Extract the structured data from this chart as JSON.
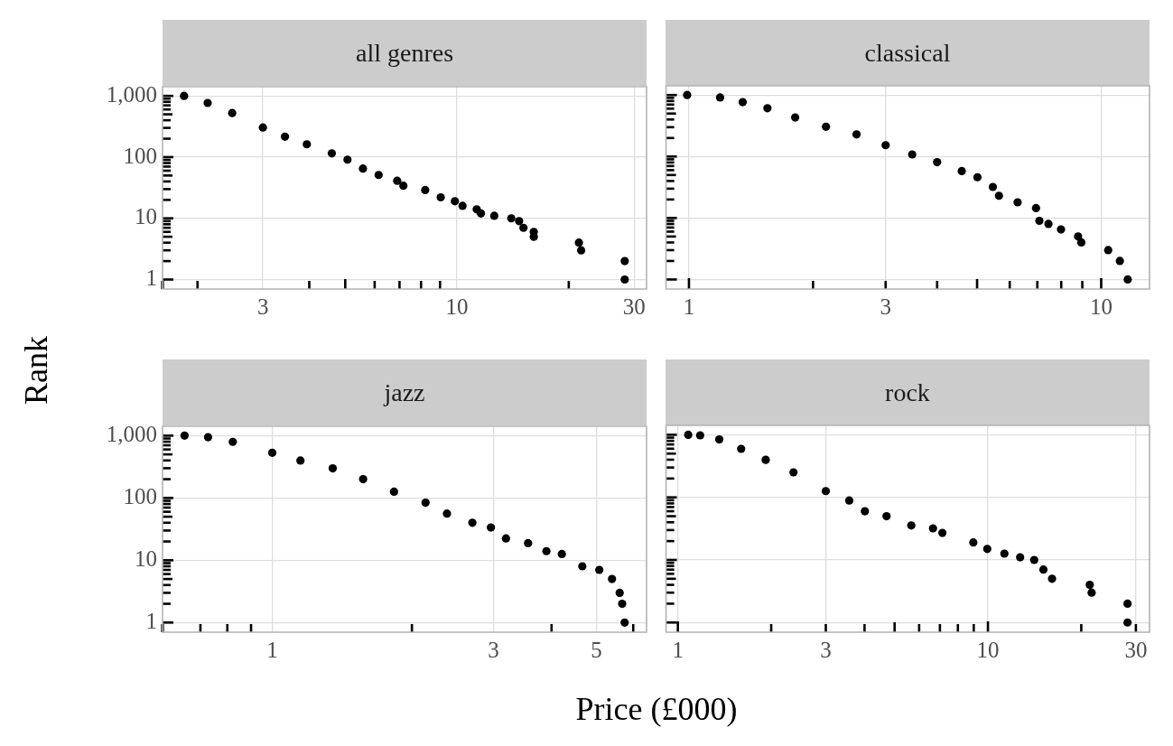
{
  "chart_data": [
    {
      "type": "scatter",
      "title": "all genres",
      "ylabel": "Rank",
      "color": "#000000",
      "marker": "circle",
      "log": "xy",
      "grid": true,
      "x": [
        1.84,
        2.13,
        2.48,
        3.0,
        3.44,
        3.94,
        4.6,
        5.07,
        5.58,
        6.15,
        6.9,
        7.17,
        8.21,
        9.04,
        9.87,
        10.35,
        11.3,
        11.6,
        12.6,
        14.0,
        14.7,
        15.1,
        16.1,
        16.1,
        21.3,
        21.6,
        28.3,
        28.3
      ],
      "values": [
        1000,
        767,
        525,
        305,
        216,
        162,
        115,
        91,
        65,
        51,
        41,
        34,
        29,
        22,
        19,
        16,
        14,
        12,
        11,
        10,
        9,
        7,
        6,
        5,
        4,
        3,
        2,
        1
      ],
      "xlim": [
        1.61,
        32.4
      ],
      "ylim": [
        0.708,
        1413
      ],
      "xticks": [
        {
          "value": 2,
          "label": null
        },
        3,
        {
          "value": 4,
          "label": null
        },
        {
          "value": 5,
          "label": null
        },
        {
          "value": 6,
          "label": null
        },
        {
          "value": 7,
          "label": null
        },
        {
          "value": 8,
          "label": null
        },
        {
          "value": 9,
          "label": null
        },
        10,
        {
          "value": 20,
          "label": null
        },
        30
      ],
      "yticks": [
        1,
        {
          "value": 2,
          "label": null
        },
        {
          "value": 3,
          "label": null
        },
        {
          "value": 4,
          "label": null
        },
        {
          "value": 5,
          "label": null
        },
        {
          "value": 6,
          "label": null
        },
        {
          "value": 7,
          "label": null
        },
        {
          "value": 8,
          "label": null
        },
        {
          "value": 9,
          "label": null
        },
        10,
        {
          "value": 20,
          "label": null
        },
        {
          "value": 30,
          "label": null
        },
        {
          "value": 40,
          "label": null
        },
        {
          "value": 50,
          "label": null
        },
        {
          "value": 60,
          "label": null
        },
        {
          "value": 70,
          "label": null
        },
        {
          "value": 80,
          "label": null
        },
        {
          "value": 90,
          "label": null
        },
        100,
        {
          "value": 200,
          "label": null
        },
        {
          "value": 300,
          "label": null
        },
        {
          "value": 400,
          "label": null
        },
        {
          "value": 500,
          "label": null
        },
        {
          "value": 600,
          "label": null
        },
        {
          "value": 700,
          "label": null
        },
        {
          "value": 800,
          "label": null
        },
        {
          "value": 900,
          "label": null
        },
        {
          "value": 1000,
          "label": "1,000"
        }
      ]
    },
    {
      "type": "scatter",
      "title": "classical",
      "color": "#000000",
      "marker": "circle",
      "log": "xy",
      "grid": true,
      "tick_labels": "x",
      "x": [
        0.99,
        1.19,
        1.35,
        1.55,
        1.81,
        2.15,
        2.55,
        3.0,
        3.48,
        4.0,
        4.59,
        5.01,
        5.46,
        5.65,
        6.27,
        6.95,
        7.08,
        7.45,
        7.99,
        8.79,
        8.95,
        10.4,
        11.1,
        11.6
      ],
      "values": [
        1000,
        912,
        767,
        610,
        431,
        305,
        229,
        153,
        108,
        81,
        58,
        46,
        32,
        23,
        18,
        14.5,
        9,
        8,
        6.5,
        5,
        4,
        3,
        2,
        1
      ],
      "xlim": [
        0.88,
        13.1
      ],
      "ylim": [
        0.708,
        1413
      ],
      "xticks": [
        1,
        {
          "value": 2,
          "label": null
        },
        3,
        {
          "value": 4,
          "label": null
        },
        {
          "value": 5,
          "label": null
        },
        {
          "value": 6,
          "label": null
        },
        {
          "value": 7,
          "label": null
        },
        {
          "value": 8,
          "label": null
        },
        {
          "value": 9,
          "label": null
        },
        10
      ],
      "yticks": [
        1,
        {
          "value": 2,
          "label": null
        },
        {
          "value": 3,
          "label": null
        },
        {
          "value": 4,
          "label": null
        },
        {
          "value": 5,
          "label": null
        },
        {
          "value": 6,
          "label": null
        },
        {
          "value": 7,
          "label": null
        },
        {
          "value": 8,
          "label": null
        },
        {
          "value": 9,
          "label": null
        },
        10,
        {
          "value": 20,
          "label": null
        },
        {
          "value": 30,
          "label": null
        },
        {
          "value": 40,
          "label": null
        },
        {
          "value": 50,
          "label": null
        },
        {
          "value": 60,
          "label": null
        },
        {
          "value": 70,
          "label": null
        },
        {
          "value": 80,
          "label": null
        },
        {
          "value": 90,
          "label": null
        },
        100,
        {
          "value": 200,
          "label": null
        },
        {
          "value": 300,
          "label": null
        },
        {
          "value": 400,
          "label": null
        },
        {
          "value": 500,
          "label": null
        },
        {
          "value": 600,
          "label": null
        },
        {
          "value": 700,
          "label": null
        },
        {
          "value": 800,
          "label": null
        },
        {
          "value": 900,
          "label": null
        },
        1000
      ]
    },
    {
      "type": "scatter",
      "title": "jazz",
      "xlabel": "Price (£000)",
      "color": "#000000",
      "marker": "circle",
      "log": "xy",
      "grid": true,
      "x": [
        0.647,
        0.727,
        0.822,
        1.0,
        1.15,
        1.35,
        1.57,
        1.83,
        2.14,
        2.38,
        2.7,
        2.96,
        3.19,
        3.56,
        3.9,
        4.21,
        4.66,
        5.07,
        5.4,
        5.61,
        5.68,
        5.75
      ],
      "values": [
        1000,
        944,
        794,
        531,
        398,
        299,
        200,
        126,
        84,
        56,
        40,
        33.5,
        22.4,
        18.8,
        14,
        12.6,
        8,
        7,
        5,
        3,
        2,
        1
      ],
      "xlim": [
        0.58,
        6.41
      ],
      "ylim": [
        0.708,
        1413
      ],
      "xticks": [
        {
          "value": 0.7,
          "label": null
        },
        {
          "value": 0.8,
          "label": null
        },
        {
          "value": 0.9,
          "label": null
        },
        1,
        {
          "value": 2,
          "label": null
        },
        3,
        {
          "value": 4,
          "label": null
        },
        5,
        {
          "value": 6,
          "label": null
        }
      ],
      "yticks": [
        1,
        {
          "value": 2,
          "label": null
        },
        {
          "value": 3,
          "label": null
        },
        {
          "value": 4,
          "label": null
        },
        {
          "value": 5,
          "label": null
        },
        {
          "value": 6,
          "label": null
        },
        {
          "value": 7,
          "label": null
        },
        {
          "value": 8,
          "label": null
        },
        {
          "value": 9,
          "label": null
        },
        10,
        {
          "value": 20,
          "label": null
        },
        {
          "value": 30,
          "label": null
        },
        {
          "value": 40,
          "label": null
        },
        {
          "value": 50,
          "label": null
        },
        {
          "value": 60,
          "label": null
        },
        {
          "value": 70,
          "label": null
        },
        {
          "value": 80,
          "label": null
        },
        {
          "value": 90,
          "label": null
        },
        100,
        {
          "value": 200,
          "label": null
        },
        {
          "value": 300,
          "label": null
        },
        {
          "value": 400,
          "label": null
        },
        {
          "value": 500,
          "label": null
        },
        {
          "value": 600,
          "label": null
        },
        {
          "value": 700,
          "label": null
        },
        {
          "value": 800,
          "label": null
        },
        {
          "value": 900,
          "label": null
        },
        {
          "value": 1000,
          "label": "1,000"
        }
      ]
    },
    {
      "type": "scatter",
      "title": "rock",
      "color": "#000000",
      "marker": "circle",
      "log": "xy",
      "grid": true,
      "tick_labels": "x",
      "x": [
        1.08,
        1.18,
        1.36,
        1.6,
        1.92,
        2.36,
        3.0,
        3.57,
        4.01,
        4.71,
        5.66,
        6.65,
        7.13,
        8.97,
        9.95,
        11.3,
        12.7,
        14.1,
        15.1,
        16.1,
        21.3,
        21.6,
        28.2,
        28.2
      ],
      "values": [
        1000,
        980,
        841,
        596,
        398,
        251,
        126,
        89,
        60,
        50,
        35.5,
        32,
        27,
        19,
        15,
        12.6,
        11,
        10,
        7,
        5,
        4,
        3,
        2,
        1
      ],
      "xlim": [
        0.916,
        33.2
      ],
      "ylim": [
        0.708,
        1413
      ],
      "xticks": [
        1,
        {
          "value": 2,
          "label": null
        },
        3,
        {
          "value": 4,
          "label": null
        },
        {
          "value": 5,
          "label": null
        },
        {
          "value": 6,
          "label": null
        },
        {
          "value": 7,
          "label": null
        },
        {
          "value": 8,
          "label": null
        },
        {
          "value": 9,
          "label": null
        },
        10,
        {
          "value": 20,
          "label": null
        },
        30
      ],
      "yticks": [
        1,
        {
          "value": 2,
          "label": null
        },
        {
          "value": 3,
          "label": null
        },
        {
          "value": 4,
          "label": null
        },
        {
          "value": 5,
          "label": null
        },
        {
          "value": 6,
          "label": null
        },
        {
          "value": 7,
          "label": null
        },
        {
          "value": 8,
          "label": null
        },
        {
          "value": 9,
          "label": null
        },
        10,
        {
          "value": 20,
          "label": null
        },
        {
          "value": 30,
          "label": null
        },
        {
          "value": 40,
          "label": null
        },
        {
          "value": 50,
          "label": null
        },
        {
          "value": 60,
          "label": null
        },
        {
          "value": 70,
          "label": null
        },
        {
          "value": 80,
          "label": null
        },
        {
          "value": 90,
          "label": null
        },
        100,
        {
          "value": 200,
          "label": null
        },
        {
          "value": 300,
          "label": null
        },
        {
          "value": 400,
          "label": null
        },
        {
          "value": 500,
          "label": null
        },
        {
          "value": 600,
          "label": null
        },
        {
          "value": 700,
          "label": null
        },
        {
          "value": 800,
          "label": null
        },
        {
          "value": 900,
          "label": null
        },
        1000
      ]
    }
  ]
}
